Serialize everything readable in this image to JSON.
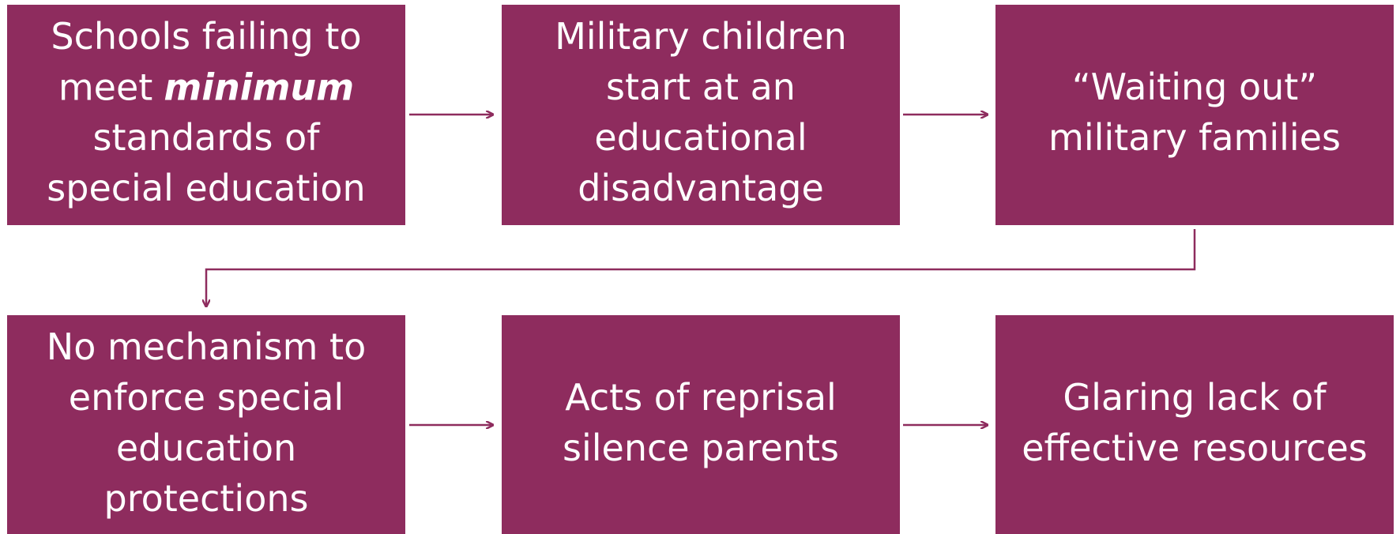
{
  "nodes": [
    {
      "lines": [
        "Schools failing to",
        [
          "meet",
          "minimum"
        ],
        "standards of",
        "special education"
      ]
    },
    {
      "lines": [
        "Military children",
        "start at an",
        "educational",
        "disadvantage"
      ]
    },
    {
      "lines": [
        "“Waiting out”",
        "military families"
      ]
    },
    {
      "lines": [
        "No mechanism to",
        "enforce special",
        "education",
        "protections"
      ]
    },
    {
      "lines": [
        "Acts of reprisal",
        "silence parents"
      ]
    },
    {
      "lines": [
        "Glaring lack of",
        "effective resources"
      ]
    }
  ]
}
